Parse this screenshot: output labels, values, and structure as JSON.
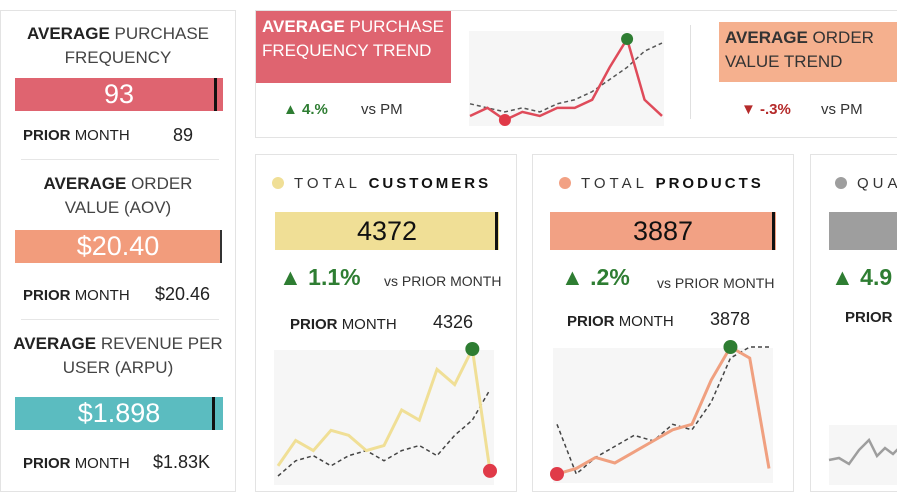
{
  "left_panel": {
    "apf": {
      "title_bold": "AVERAGE",
      "title_rest": "PURCHASE",
      "title_line2": "FREQUENCY",
      "value": "93",
      "prior_bold": "PRIOR",
      "prior_rest": "MONTH",
      "prior_value": "89",
      "color": "#df6470"
    },
    "aov": {
      "title_bold": "AVERAGE",
      "title_rest": "ORDER",
      "title_line2": "VALUE (AOV)",
      "value": "$20.40",
      "prior_bold": "PRIOR",
      "prior_rest": "MONTH",
      "prior_value": "$20.46",
      "color": "#f29c7c"
    },
    "arpu": {
      "title_bold": "AVERAGE",
      "title_rest": "REVENUE PER",
      "title_line2": "USER (ARPU)",
      "value": "$1.898",
      "prior_bold": "PRIOR",
      "prior_rest": "MONTH",
      "prior_value": "$1.83K",
      "color": "#5bbcc0"
    }
  },
  "trends": {
    "apf": {
      "label_bold": "AVERAGE",
      "label_rest": "PURCHASE",
      "label_line2": "FREQUENCY TREND",
      "delta": "▲ 4.%",
      "vs": "vs PM",
      "color": "#df6470",
      "series_current": [
        2,
        4,
        1,
        3,
        2,
        4,
        4,
        6,
        14,
        21,
        6,
        2
      ],
      "series_prior": [
        5,
        4,
        3,
        4,
        3,
        5,
        6,
        8,
        11,
        14,
        18,
        20
      ]
    },
    "aov": {
      "label_bold": "AVERAGE",
      "label_rest": "ORDER",
      "label_line2": "VALUE TREND",
      "delta": "▼ -.3%",
      "vs": "vs PM",
      "color": "#f5b08e"
    }
  },
  "cards": {
    "customers": {
      "head_light": "TOTAL",
      "head_bold": "CUSTOMERS",
      "value": "4372",
      "delta": "▲ 1.1%",
      "vs": "vs PRIOR MONTH",
      "prior_bold": "PRIOR",
      "prior_rest": "MONTH",
      "prior_value": "4326",
      "color": "#f0df96",
      "line_color": "#f0df96",
      "series_current": [
        3,
        8,
        6,
        10,
        9,
        6,
        7,
        14,
        12,
        22,
        19,
        26,
        2
      ],
      "series_prior": [
        1,
        4,
        5,
        3,
        5,
        6,
        4,
        6,
        7,
        5,
        9,
        12,
        18
      ]
    },
    "products": {
      "head_light": "TOTAL",
      "head_bold": "PRODUCTS",
      "value": "3887",
      "delta": "▲ .2%",
      "vs": "vs PRIOR MONTH",
      "prior_bold": "PRIOR",
      "prior_rest": "MONTH",
      "prior_value": "3878",
      "color": "#f2a184",
      "line_color": "#f0a080",
      "series_current": [
        1,
        2,
        4,
        3,
        5,
        7,
        9,
        10,
        18,
        24,
        22,
        2
      ],
      "series_prior": [
        10,
        1,
        4,
        6,
        8,
        7,
        10,
        9,
        14,
        22,
        24,
        24
      ]
    },
    "quantity": {
      "head_light": "QUA",
      "delta": "▲ 4.9",
      "prior_bold": "PRIOR",
      "color": "#9e9e9e"
    }
  }
}
